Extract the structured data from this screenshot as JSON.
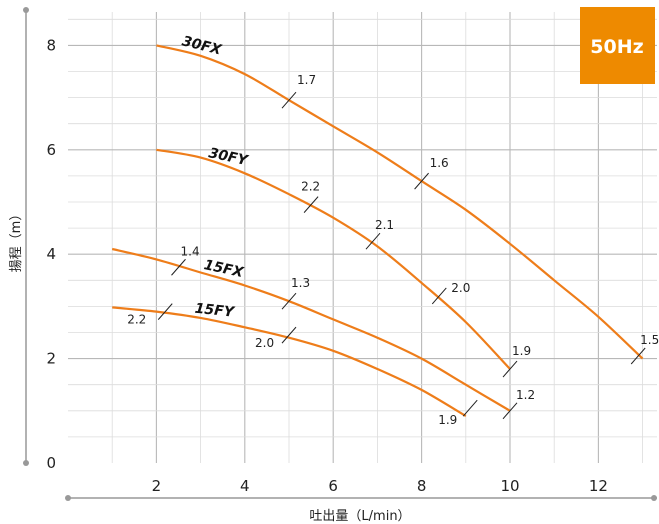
{
  "chart_data": {
    "type": "line",
    "xlabel": "吐出量（L/min）",
    "ylabel": "揚程（m）",
    "xlim": [
      0,
      13.4
    ],
    "ylim": [
      0,
      8.6
    ],
    "x_ticks": [
      "2",
      "4",
      "6",
      "8",
      "10",
      "12"
    ],
    "y_ticks": [
      "0",
      "2",
      "4",
      "6",
      "8"
    ],
    "grid": true,
    "badge": "50Hz",
    "colors": {
      "line": "#ee7d1a",
      "badge": "#ee8a00",
      "grid": "#bbbbbb"
    },
    "series": [
      {
        "name": "30FX",
        "x": [
          2,
          3,
          4,
          5,
          6,
          7,
          8,
          9,
          10,
          11,
          12,
          13
        ],
        "y": [
          8.0,
          7.8,
          7.45,
          6.95,
          6.45,
          5.95,
          5.4,
          4.85,
          4.2,
          3.5,
          2.8,
          2.0
        ],
        "annotations": [
          {
            "x": 5,
            "y": 6.95,
            "text": "1.7"
          },
          {
            "x": 8,
            "y": 5.4,
            "text": "1.6"
          },
          {
            "x": 12.9,
            "y": 2.05,
            "text": "1.5"
          }
        ]
      },
      {
        "name": "30FY",
        "x": [
          2,
          3,
          4,
          5,
          6,
          7,
          8,
          9,
          10
        ],
        "y": [
          6.0,
          5.85,
          5.55,
          5.15,
          4.7,
          4.15,
          3.45,
          2.7,
          1.8
        ],
        "annotations": [
          {
            "x": 5.5,
            "y": 4.95,
            "text": "2.2"
          },
          {
            "x": 6.9,
            "y": 4.25,
            "text": "2.1"
          },
          {
            "x": 8.4,
            "y": 3.2,
            "text": "2.0"
          },
          {
            "x": 10,
            "y": 1.8,
            "text": "1.9"
          }
        ]
      },
      {
        "name": "15FX",
        "x": [
          1,
          2,
          3,
          4,
          5,
          6,
          7,
          8,
          9,
          10
        ],
        "y": [
          4.1,
          3.9,
          3.65,
          3.4,
          3.1,
          2.75,
          2.4,
          2.0,
          1.5,
          1.0
        ],
        "annotations": [
          {
            "x": 2.5,
            "y": 3.75,
            "text": "1.4"
          },
          {
            "x": 5,
            "y": 3.1,
            "text": "1.3"
          },
          {
            "x": 10,
            "y": 1.0,
            "text": "1.2"
          }
        ]
      },
      {
        "name": "15FY",
        "x": [
          1,
          2,
          3,
          4,
          5,
          6,
          7,
          8,
          9
        ],
        "y": [
          2.98,
          2.9,
          2.78,
          2.6,
          2.4,
          2.15,
          1.8,
          1.4,
          0.9
        ],
        "annotations": [
          {
            "x": 2.2,
            "y": 2.9,
            "text": "2.2"
          },
          {
            "x": 5,
            "y": 2.45,
            "text": "2.0"
          },
          {
            "x": 9.1,
            "y": 1.05,
            "text": "1.9"
          }
        ]
      }
    ]
  }
}
